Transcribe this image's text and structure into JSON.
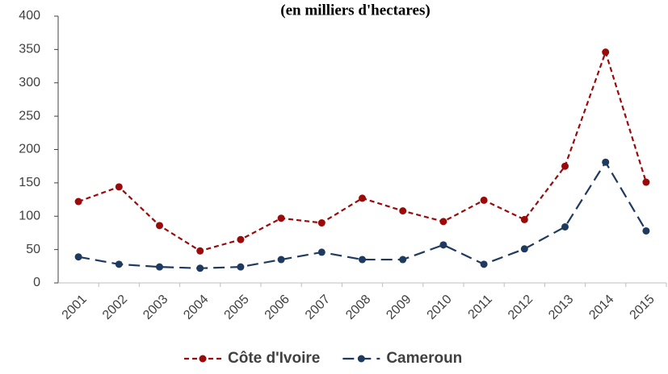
{
  "chart_data": {
    "type": "line",
    "subtitle": "(en milliers d'hectares)",
    "categories": [
      "2001",
      "2002",
      "2003",
      "2004",
      "2005",
      "2006",
      "2007",
      "2008",
      "2009",
      "2010",
      "2011",
      "2012",
      "2013",
      "2014",
      "2015"
    ],
    "series": [
      {
        "name": "Côte d'Ivoire",
        "color": "#9b0a0a",
        "values": [
          122,
          144,
          86,
          48,
          65,
          97,
          90,
          127,
          108,
          92,
          124,
          95,
          175,
          346,
          151
        ]
      },
      {
        "name": "Cameroun",
        "color": "#1f3a5f",
        "values": [
          39,
          28,
          24,
          22,
          24,
          35,
          46,
          35,
          35,
          57,
          28,
          51,
          84,
          181,
          78
        ]
      }
    ],
    "ylim": [
      0,
      400
    ],
    "yticks": [
      0,
      50,
      100,
      150,
      200,
      250,
      300,
      350,
      400
    ],
    "grid": false,
    "legend": "bottom"
  }
}
